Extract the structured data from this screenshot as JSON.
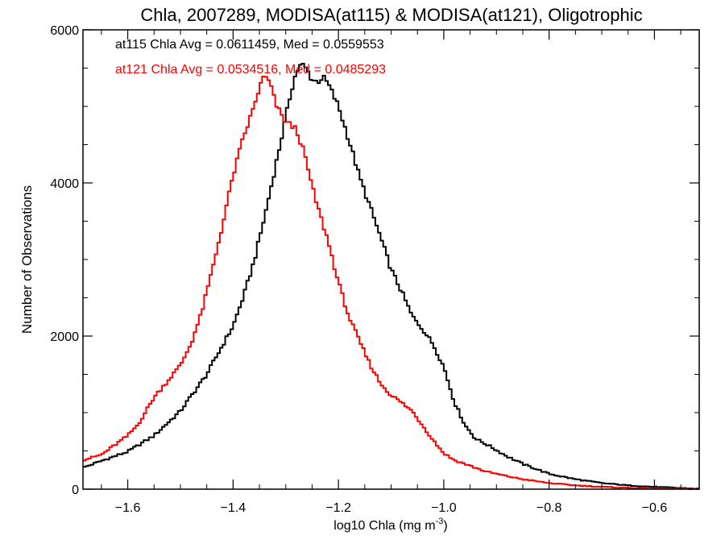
{
  "chart_data": {
    "type": "line",
    "title": "Chla, 2007289, MODISA(at115) & MODISA(at121), Oligotrophic",
    "xlabel": "log10 Chla (mg m",
    "xlabel_sup": "-3",
    "xlabel_suffix": ")",
    "ylabel": "Number of Observations",
    "xlim": [
      -1.685,
      -0.515
    ],
    "ylim": [
      0,
      6000
    ],
    "x_ticks": [
      -1.6,
      -1.4,
      -1.2,
      -1.0,
      -0.8,
      -0.6
    ],
    "x_tick_labels": [
      "−1.6",
      "−1.4",
      "−1.2",
      "−1.0",
      "−0.8",
      "−0.6"
    ],
    "y_ticks": [
      0,
      2000,
      4000,
      6000
    ],
    "y_tick_labels": [
      "0",
      "2000",
      "4000",
      "6000"
    ],
    "grid": false,
    "annotations": [
      {
        "text": "at115 Chla Avg = 0.0611459, Med = 0.0559553",
        "color": "#000000"
      },
      {
        "text": "at121 Chla Avg = 0.0534516, Med = 0.0485293",
        "color": "#ff0000"
      }
    ],
    "series": [
      {
        "name": "at115",
        "color": "#000000",
        "x": [
          -1.685,
          -1.65,
          -1.6,
          -1.55,
          -1.5,
          -1.45,
          -1.42,
          -1.4,
          -1.38,
          -1.36,
          -1.34,
          -1.32,
          -1.3,
          -1.29,
          -1.28,
          -1.27,
          -1.26,
          -1.25,
          -1.24,
          -1.23,
          -1.22,
          -1.2,
          -1.18,
          -1.16,
          -1.14,
          -1.12,
          -1.1,
          -1.08,
          -1.06,
          -1.04,
          -1.02,
          -1.0,
          -0.98,
          -0.96,
          -0.94,
          -0.92,
          -0.9,
          -0.88,
          -0.85,
          -0.8,
          -0.75,
          -0.7,
          -0.65,
          -0.6,
          -0.55,
          -0.515
        ],
        "y": [
          280,
          370,
          490,
          700,
          1020,
          1500,
          1880,
          2130,
          2520,
          2980,
          3560,
          4200,
          4850,
          5200,
          5450,
          5550,
          5480,
          5350,
          5320,
          5380,
          5300,
          5000,
          4560,
          4080,
          3690,
          3290,
          2870,
          2580,
          2260,
          2090,
          1890,
          1600,
          1140,
          840,
          660,
          590,
          510,
          430,
          330,
          200,
          130,
          80,
          50,
          30,
          15,
          5
        ]
      },
      {
        "name": "at121",
        "color": "#ff0000",
        "x": [
          -1.685,
          -1.65,
          -1.62,
          -1.6,
          -1.58,
          -1.55,
          -1.52,
          -1.5,
          -1.48,
          -1.46,
          -1.44,
          -1.42,
          -1.4,
          -1.38,
          -1.36,
          -1.35,
          -1.34,
          -1.33,
          -1.32,
          -1.31,
          -1.3,
          -1.29,
          -1.28,
          -1.27,
          -1.26,
          -1.25,
          -1.24,
          -1.22,
          -1.2,
          -1.18,
          -1.16,
          -1.14,
          -1.12,
          -1.1,
          -1.08,
          -1.06,
          -1.04,
          -1.02,
          -1.0,
          -0.98,
          -0.96,
          -0.94,
          -0.92,
          -0.9,
          -0.88,
          -0.85,
          -0.8,
          -0.75,
          -0.7,
          -0.65,
          -0.6,
          -0.55,
          -0.515
        ],
        "y": [
          380,
          450,
          600,
          700,
          850,
          1200,
          1450,
          1620,
          1900,
          2300,
          2850,
          3450,
          4100,
          4600,
          5000,
          5250,
          5400,
          5300,
          5050,
          4900,
          4800,
          4750,
          4700,
          4500,
          4250,
          3950,
          3700,
          3250,
          2700,
          2250,
          1930,
          1630,
          1380,
          1230,
          1130,
          1020,
          830,
          640,
          470,
          380,
          330,
          280,
          230,
          200,
          170,
          130,
          80,
          50,
          30,
          18,
          10,
          5,
          0
        ]
      }
    ]
  }
}
